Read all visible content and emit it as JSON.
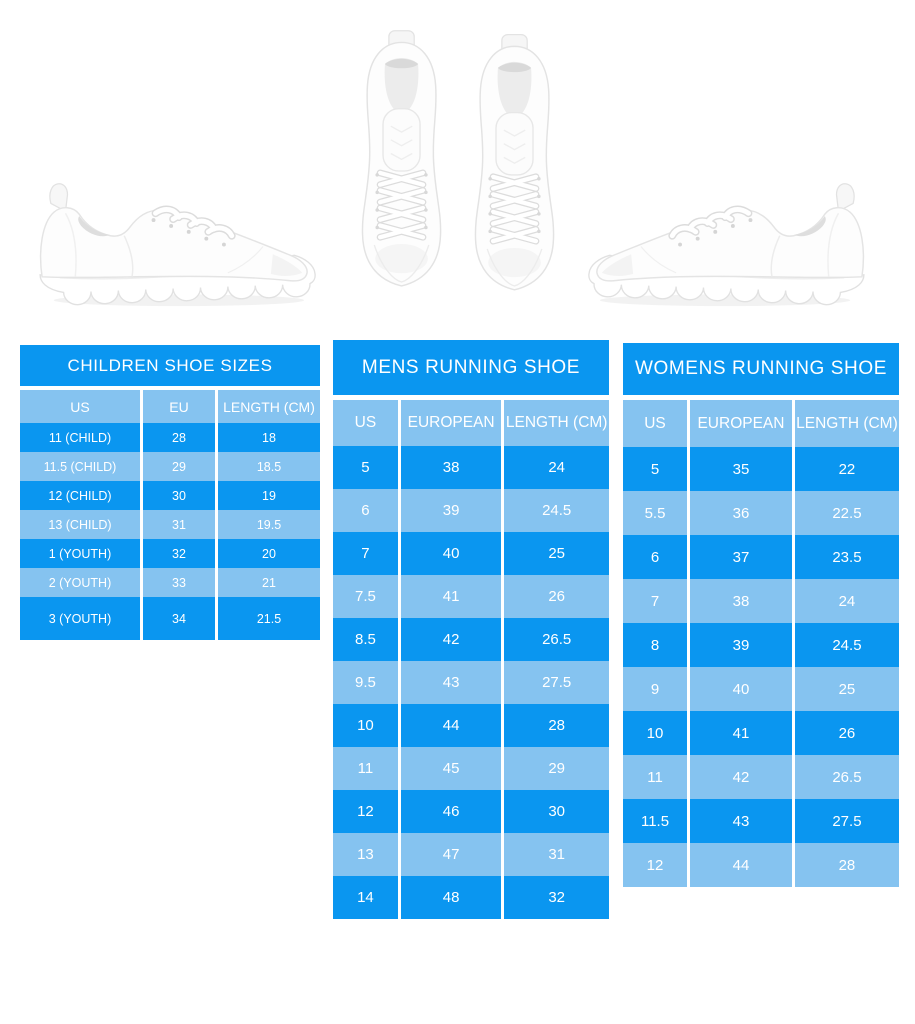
{
  "colors": {
    "table_blue": "#0a96f0",
    "table_light_blue": "#85c3f0",
    "table_text": "#ffffff",
    "background": "#ffffff"
  },
  "tables": [
    {
      "id": "children",
      "title": "CHILDREN SHOE SIZES",
      "headers": [
        "US",
        "EU",
        "LENGTH (CM)"
      ],
      "rows": [
        [
          "11 (CHILD)",
          "28",
          "18"
        ],
        [
          "11.5 (CHILD)",
          "29",
          "18.5"
        ],
        [
          "12 (CHILD)",
          "30",
          "19"
        ],
        [
          "13 (CHILD)",
          "31",
          "19.5"
        ],
        [
          "1 (YOUTH)",
          "32",
          "20"
        ],
        [
          "2 (YOUTH)",
          "33",
          "21"
        ],
        [
          "3 (YOUTH)",
          "34",
          "21.5"
        ]
      ]
    },
    {
      "id": "mens",
      "title": "MENS RUNNING SHOE",
      "headers": [
        "US",
        "EUROPEAN",
        "LENGTH (CM)"
      ],
      "rows": [
        [
          "5",
          "38",
          "24"
        ],
        [
          "6",
          "39",
          "24.5"
        ],
        [
          "7",
          "40",
          "25"
        ],
        [
          "7.5",
          "41",
          "26"
        ],
        [
          "8.5",
          "42",
          "26.5"
        ],
        [
          "9.5",
          "43",
          "27.5"
        ],
        [
          "10",
          "44",
          "28"
        ],
        [
          "11",
          "45",
          "29"
        ],
        [
          "12",
          "46",
          "30"
        ],
        [
          "13",
          "47",
          "31"
        ],
        [
          "14",
          "48",
          "32"
        ]
      ]
    },
    {
      "id": "womens",
      "title": "WOMENS RUNNING SHOE",
      "headers": [
        "US",
        "EUROPEAN",
        "LENGTH (CM)"
      ],
      "rows": [
        [
          "5",
          "35",
          "22"
        ],
        [
          "5.5",
          "36",
          "22.5"
        ],
        [
          "6",
          "37",
          "23.5"
        ],
        [
          "7",
          "38",
          "24"
        ],
        [
          "8",
          "39",
          "24.5"
        ],
        [
          "9",
          "40",
          "25"
        ],
        [
          "10",
          "41",
          "26"
        ],
        [
          "11",
          "42",
          "26.5"
        ],
        [
          "11.5",
          "43",
          "27.5"
        ],
        [
          "12",
          "44",
          "28"
        ]
      ]
    }
  ]
}
